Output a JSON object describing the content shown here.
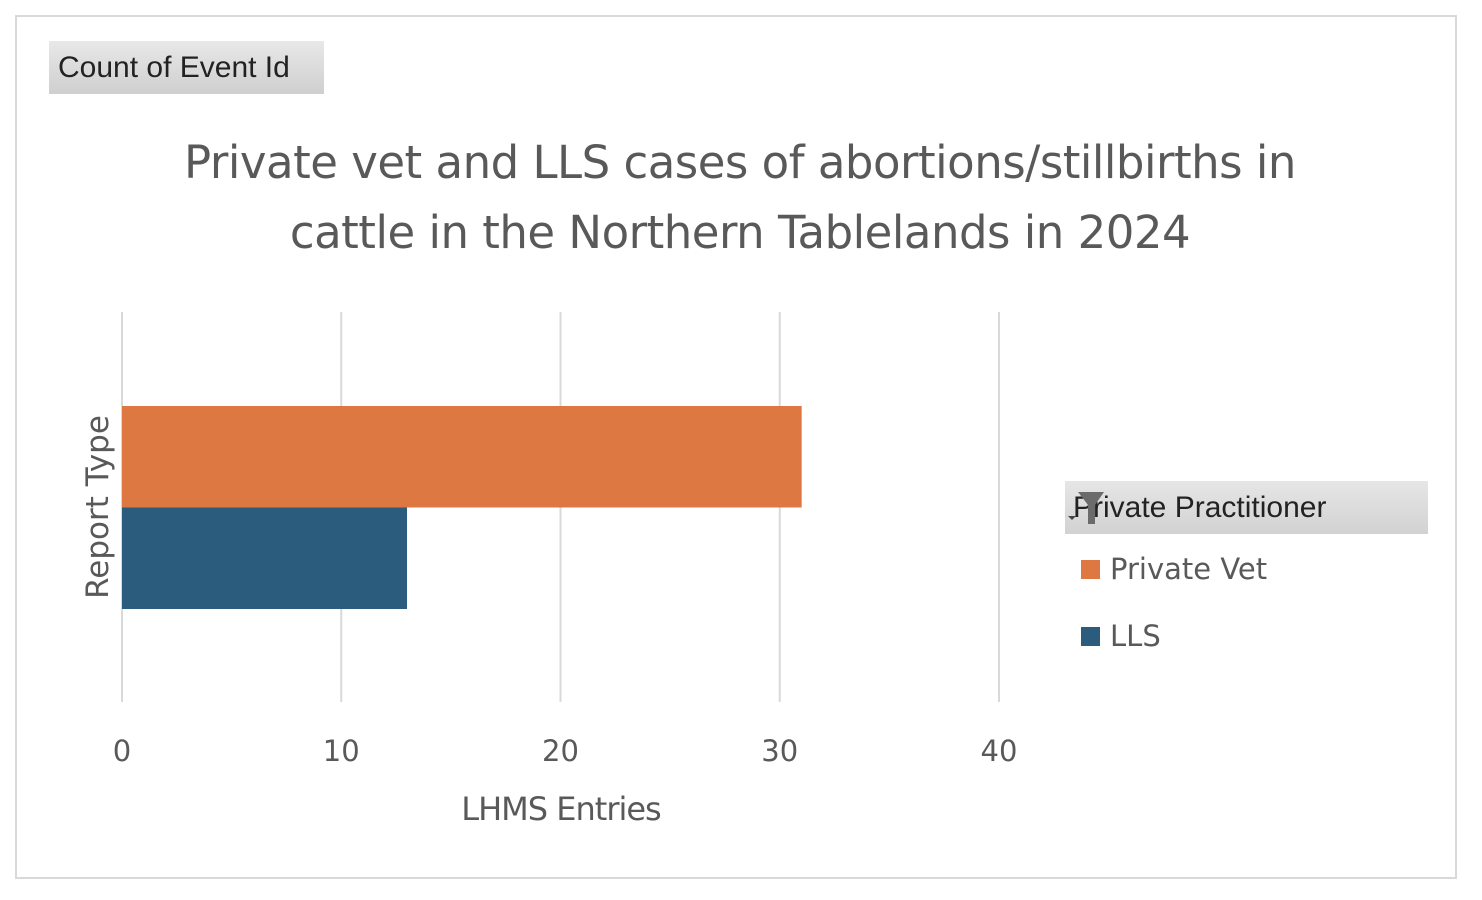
{
  "field_button": {
    "label": "Count of Event Id"
  },
  "legend_filter": {
    "label": "Private Practitioner",
    "icon": "filter-dropdown-icon"
  },
  "chart_data": {
    "type": "bar",
    "orientation": "horizontal",
    "title": "Private vet and LLS cases of abortions/stillbirths in cattle in the Northern Tablelands in 2024",
    "xlabel": "LHMS Entries",
    "ylabel": "Report Type",
    "xlim": [
      0,
      40
    ],
    "xticks": [
      "0",
      "10",
      "20",
      "30",
      "40"
    ],
    "grid": true,
    "legend_position": "right",
    "series": [
      {
        "name": "Private Vet",
        "values": [
          31
        ],
        "color": "#DD7843"
      },
      {
        "name": "LLS",
        "values": [
          13
        ],
        "color": "#2B5C7D"
      }
    ]
  }
}
